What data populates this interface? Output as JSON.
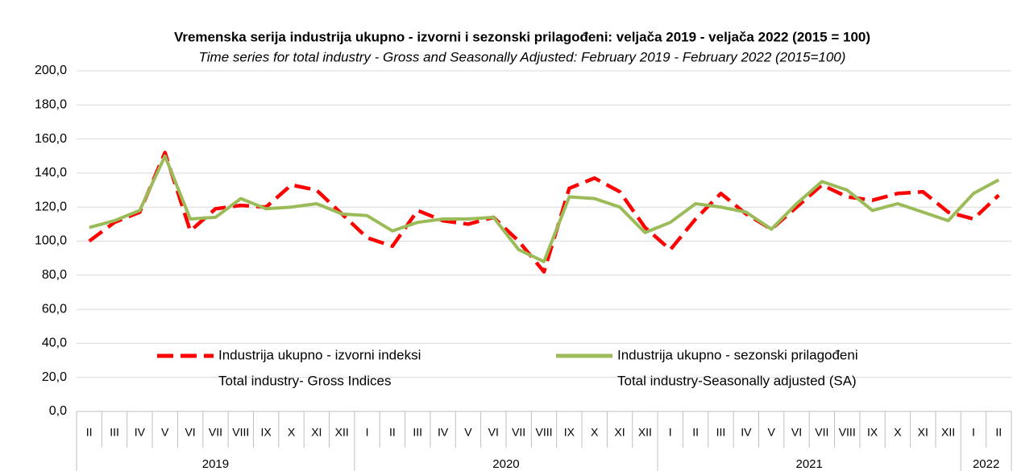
{
  "chart_data": {
    "type": "line",
    "title": "Vremenska serija industrija ukupno - izvorni i sezonski prilagođeni: veljača 2019 - veljača 2022 (2015 = 100)",
    "subtitle": "Time series for total industry - Gross and Seasonally Adjusted: February 2019 - February 2022 (2015=100)",
    "categories": [
      "II",
      "III",
      "IV",
      "V",
      "VI",
      "VII",
      "VIII",
      "IX",
      "X",
      "XI",
      "XII",
      "I",
      "II",
      "III",
      "IV",
      "V",
      "VI",
      "VII",
      "VIII",
      "IX",
      "X",
      "XI",
      "XII",
      "I",
      "II",
      "III",
      "IV",
      "V",
      "VI",
      "VII",
      "VIII",
      "IX",
      "X",
      "XI",
      "XII",
      "I",
      "II"
    ],
    "category_groups": [
      "2019",
      "2019",
      "2019",
      "2019",
      "2019",
      "2019",
      "2019",
      "2019",
      "2019",
      "2019",
      "2019",
      "2020",
      "2020",
      "2020",
      "2020",
      "2020",
      "2020",
      "2020",
      "2020",
      "2020",
      "2020",
      "2020",
      "2020",
      "2021",
      "2021",
      "2021",
      "2021",
      "2021",
      "2021",
      "2021",
      "2021",
      "2021",
      "2021",
      "2021",
      "2021",
      "2022",
      "2022"
    ],
    "series": [
      {
        "name": "Industrija ukupno - izvorni indeksi",
        "name_en": "Total industry- Gross Indices",
        "color": "#ff0000",
        "dashed": true,
        "values": [
          100,
          111,
          117,
          152,
          106,
          119,
          121,
          120,
          133,
          130,
          116,
          102,
          97,
          118,
          112,
          110,
          114,
          100,
          82,
          131,
          137,
          129,
          108,
          95,
          113,
          128,
          116,
          107,
          120,
          133,
          126,
          124,
          128,
          129,
          117,
          113,
          127
        ]
      },
      {
        "name": "Industrija ukupno - sezonski prilagođeni",
        "name_en": "Total industry-Seasonally adjusted (SA)",
        "color": "#9bbb59",
        "dashed": false,
        "values": [
          108,
          112,
          118,
          150,
          113,
          114,
          125,
          119,
          120,
          122,
          116,
          115,
          106,
          111,
          113,
          113,
          114,
          95,
          88,
          126,
          125,
          120,
          105,
          111,
          122,
          120,
          117,
          107,
          122,
          135,
          130,
          118,
          122,
          117,
          112,
          128,
          136
        ]
      }
    ],
    "ylim": [
      0,
      200
    ],
    "yticks": [
      {
        "value": 0,
        "label": "0,0"
      },
      {
        "value": 20,
        "label": "20,0"
      },
      {
        "value": 40,
        "label": "40,0"
      },
      {
        "value": 60,
        "label": "60,0"
      },
      {
        "value": 80,
        "label": "80,0"
      },
      {
        "value": 100,
        "label": "100,0"
      },
      {
        "value": 120,
        "label": "120,0"
      },
      {
        "value": 140,
        "label": "140,0"
      },
      {
        "value": 160,
        "label": "160,0"
      },
      {
        "value": 180,
        "label": "180,0"
      },
      {
        "value": 200,
        "label": "200,0"
      }
    ],
    "grid": true
  }
}
